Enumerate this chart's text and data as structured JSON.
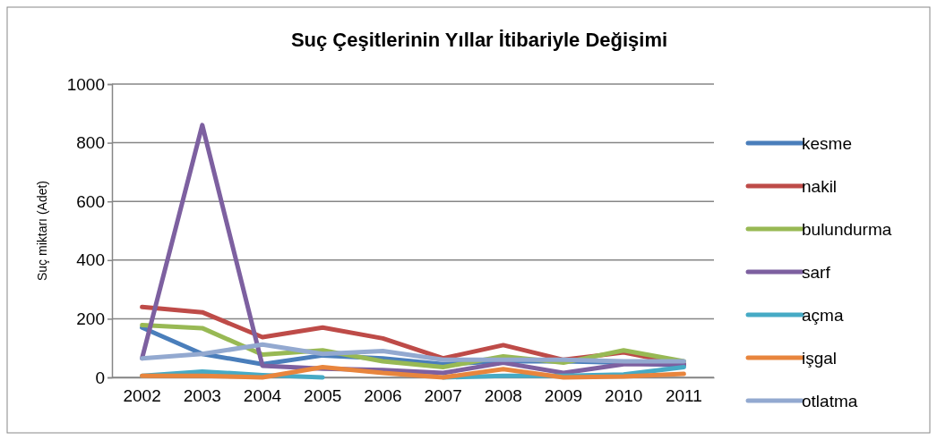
{
  "chart_data": {
    "type": "line",
    "title": "Suç Çeşitlerinin Yıllar İtibariyle Değişimi",
    "ylabel": "Suç miktarı (Adet)",
    "categories": [
      "2002",
      "2003",
      "2004",
      "2005",
      "2006",
      "2007",
      "2008",
      "2009",
      "2010",
      "2011"
    ],
    "series": [
      {
        "name": "kesme",
        "color": "#4a7ebb",
        "values": [
          170,
          80,
          45,
          75,
          65,
          45,
          55,
          55,
          50,
          40
        ]
      },
      {
        "name": "nakil",
        "color": "#be4b48",
        "values": [
          240,
          222,
          137,
          170,
          133,
          65,
          110,
          60,
          85,
          45
        ]
      },
      {
        "name": "bulundurma",
        "color": "#98b954",
        "values": [
          178,
          168,
          78,
          92,
          55,
          35,
          72,
          50,
          92,
          55
        ]
      },
      {
        "name": "sarf",
        "color": "#7d60a0",
        "values": [
          65,
          860,
          40,
          30,
          25,
          15,
          50,
          15,
          45,
          45
        ]
      },
      {
        "name": "açma",
        "color": "#46aac5",
        "values": [
          5,
          20,
          8,
          0,
          null,
          0,
          5,
          5,
          10,
          35
        ]
      },
      {
        "name": "işgal",
        "color": "#e8853d",
        "values": [
          5,
          5,
          0,
          35,
          15,
          0,
          28,
          0,
          3,
          12
        ]
      },
      {
        "name": "otlatma",
        "color": "#93a9d0",
        "values": [
          65,
          80,
          112,
          80,
          90,
          60,
          60,
          60,
          55,
          55
        ]
      }
    ],
    "ylim": [
      0,
      1000
    ],
    "yticks": [
      0,
      200,
      400,
      600,
      800,
      1000
    ],
    "grid": "y",
    "legend": "right",
    "marker": "none",
    "line_style": "solid"
  }
}
